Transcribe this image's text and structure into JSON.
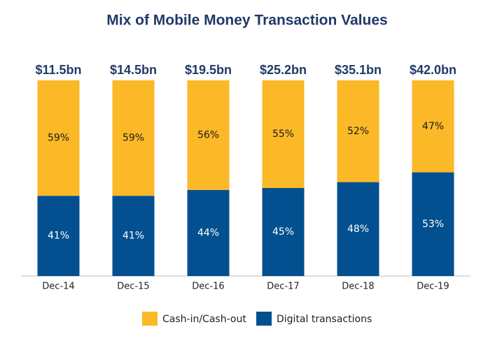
{
  "chart_data": {
    "type": "stacked_bar_100",
    "title": "Mix of Mobile Money Transaction Values",
    "categories": [
      "Dec-14",
      "Dec-15",
      "Dec-16",
      "Dec-17",
      "Dec-18",
      "Dec-19"
    ],
    "totals": [
      11.5,
      14.5,
      19.5,
      25.2,
      35.1,
      42.0
    ],
    "total_labels": [
      "$11.5bn",
      "$14.5bn",
      "$19.5bn",
      "$25.2bn",
      "$35.1bn",
      "$42.0bn"
    ],
    "series": [
      {
        "name": "Cash-in/Cash-out",
        "color": "#fbb827",
        "label_color": "#1a1a1a",
        "values": [
          59,
          59,
          56,
          55,
          52,
          47
        ],
        "value_labels": [
          "59%",
          "59%",
          "56%",
          "55%",
          "52%",
          "47%"
        ]
      },
      {
        "name": "Digital transactions",
        "color": "#02508f",
        "label_color": "#ffffff",
        "values": [
          41,
          41,
          44,
          45,
          48,
          53
        ],
        "value_labels": [
          "41%",
          "41%",
          "44%",
          "45%",
          "48%",
          "53%"
        ]
      }
    ],
    "legend": "bottom"
  }
}
